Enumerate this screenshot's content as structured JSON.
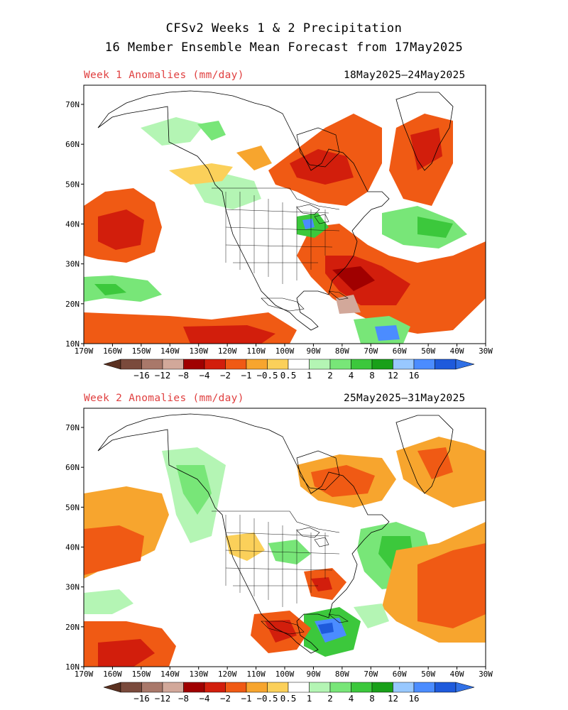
{
  "title_line1": "CFSv2 Weeks 1 & 2 Precipitation",
  "title_line2": "16 Member Ensemble Mean Forecast from 17May2025",
  "panels": [
    {
      "subtitle": "Week 1 Anomalies (mm/day)",
      "dates": "18May2025–24May2025"
    },
    {
      "subtitle": "Week 2 Anomalies (mm/day)",
      "dates": "25May2025–31May2025"
    }
  ],
  "lon_labels": [
    "170W",
    "160W",
    "150W",
    "140W",
    "130W",
    "120W",
    "110W",
    "100W",
    "90W",
    "80W",
    "70W",
    "60W",
    "50W",
    "40W",
    "30W"
  ],
  "lat_labels": [
    "70N",
    "60N",
    "50N",
    "40N",
    "30N",
    "20N",
    "10N"
  ],
  "colorbar": {
    "labels": [
      "−16",
      "−12",
      "−8",
      "−4",
      "−2",
      "−1",
      "−0.5",
      "0.5",
      "1",
      "2",
      "4",
      "8",
      "12",
      "16"
    ],
    "colors": [
      "#7a4a3c",
      "#a9786a",
      "#d2a89a",
      "#a00000",
      "#d21e0c",
      "#f05a14",
      "#f7a52e",
      "#fbd05a",
      "#ffffff",
      "#b4f5b4",
      "#78e678",
      "#3cc83c",
      "#19a019",
      "#98c8ff",
      "#4b8cff",
      "#1e5adc"
    ],
    "left_arrow_color": "#5a3020",
    "right_arrow_color": "#3070e6"
  }
}
